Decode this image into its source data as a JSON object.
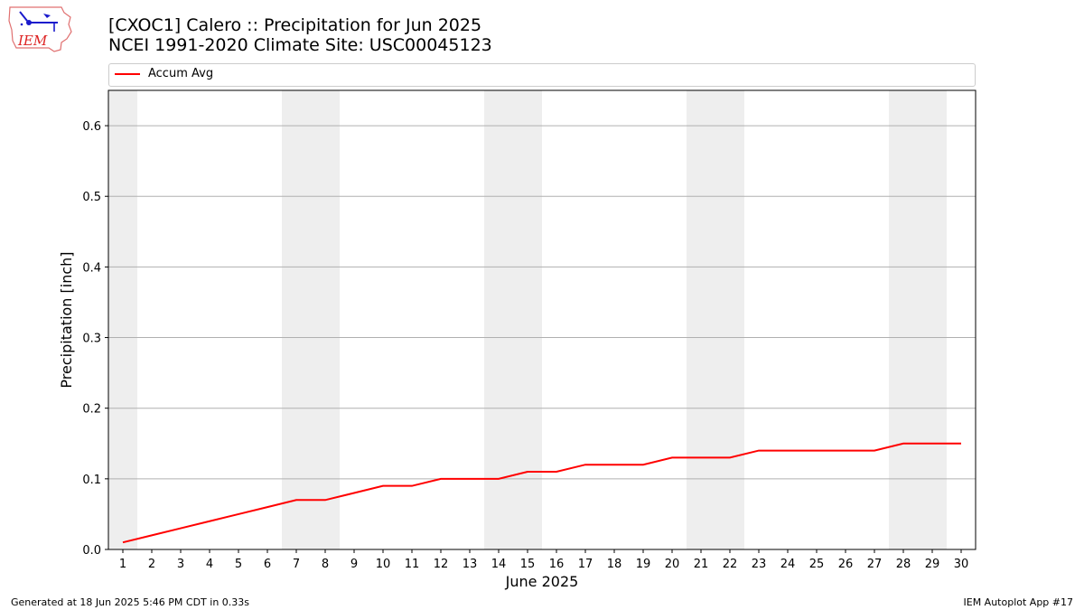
{
  "header": {
    "title_line1": "[CXOC1] Calero :: Precipitation for Jun 2025",
    "title_line2": "NCEI 1991-2020 Climate Site: USC00045123",
    "logo_text": "IEM"
  },
  "footer": {
    "left": "Generated at 18 Jun 2025 5:46 PM CDT in 0.33s",
    "right": "IEM Autoplot App #17"
  },
  "chart_data": {
    "type": "line",
    "xlabel": "June 2025",
    "ylabel": "Precipitation [inch]",
    "x": [
      1,
      2,
      3,
      4,
      5,
      6,
      7,
      8,
      9,
      10,
      11,
      12,
      13,
      14,
      15,
      16,
      17,
      18,
      19,
      20,
      21,
      22,
      23,
      24,
      25,
      26,
      27,
      28,
      29,
      30
    ],
    "xlim": [
      0.5,
      30.5
    ],
    "ylim": [
      0,
      0.65
    ],
    "yticks": [
      0.0,
      0.1,
      0.2,
      0.3,
      0.4,
      0.5,
      0.6
    ],
    "ytick_labels": [
      "0.0",
      "0.1",
      "0.2",
      "0.3",
      "0.4",
      "0.5",
      "0.6"
    ],
    "grid": "horizontal",
    "legend": "top",
    "weekend_days": [
      1,
      7,
      8,
      14,
      15,
      21,
      22,
      28,
      29
    ],
    "weekend_color": "#eeeeee",
    "series": [
      {
        "name": "Accum Avg",
        "color": "#ff0000",
        "values": [
          0.01,
          0.02,
          0.03,
          0.04,
          0.05,
          0.06,
          0.07,
          0.07,
          0.08,
          0.09,
          0.09,
          0.1,
          0.1,
          0.1,
          0.11,
          0.11,
          0.12,
          0.12,
          0.12,
          0.13,
          0.13,
          0.13,
          0.14,
          0.14,
          0.14,
          0.14,
          0.14,
          0.15,
          0.15,
          0.15
        ]
      }
    ]
  }
}
